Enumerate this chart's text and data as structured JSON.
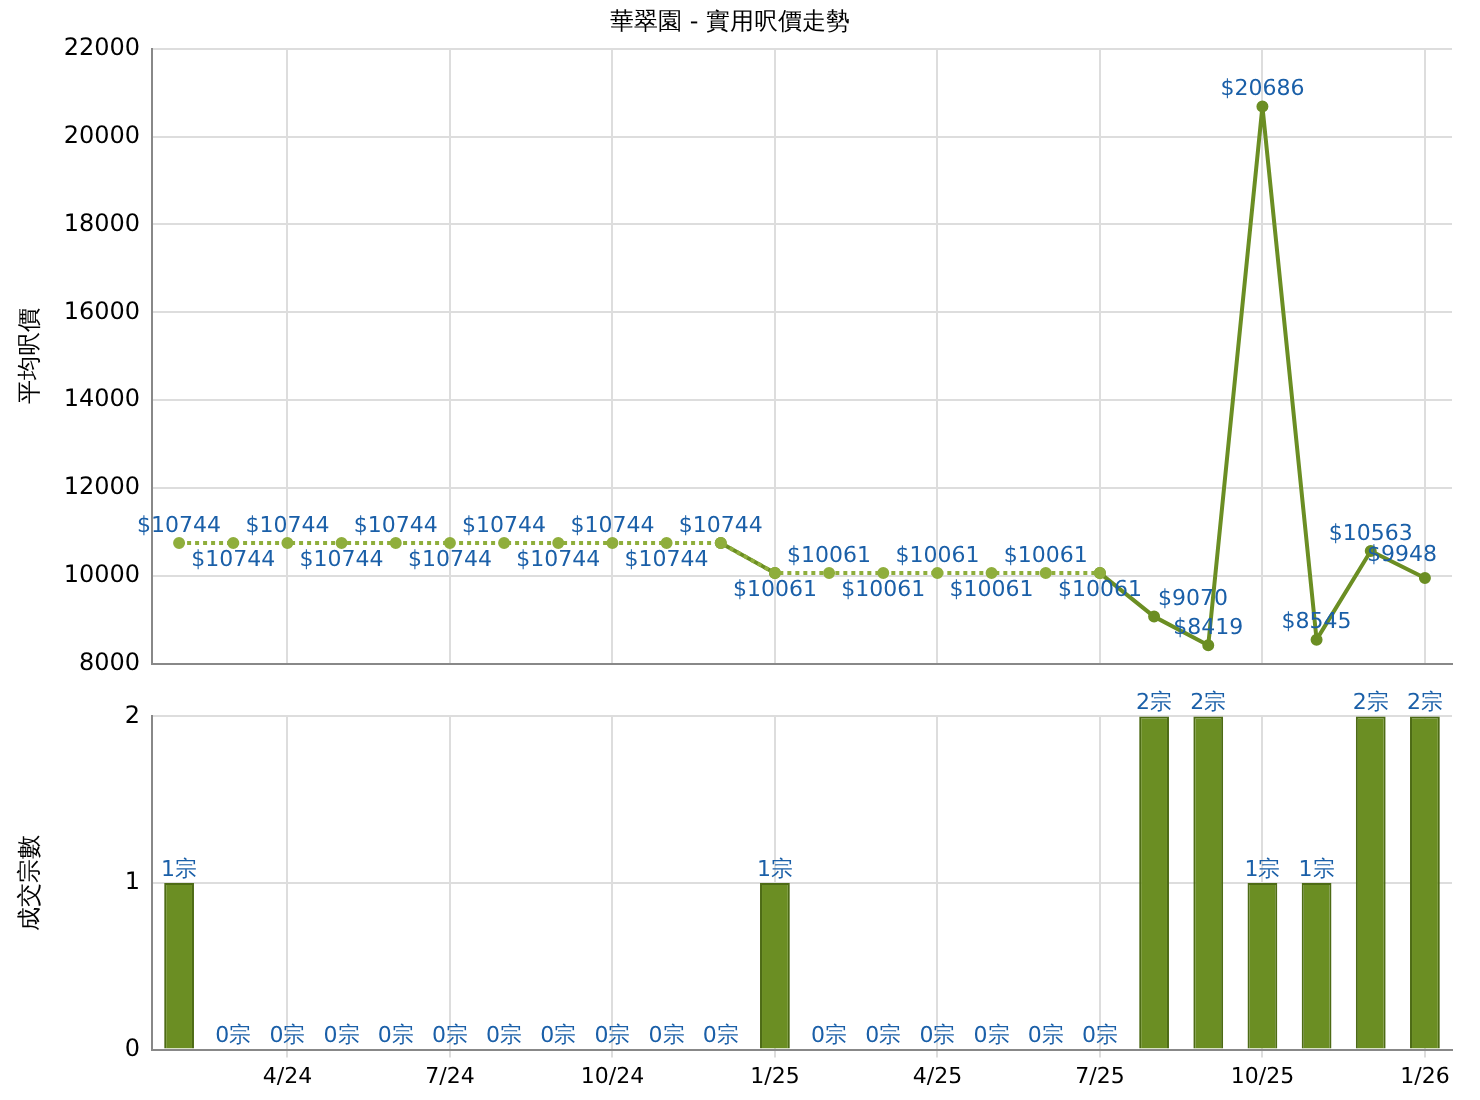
{
  "chart_data": [
    {
      "type": "line",
      "title": "華翠園 - 實用呎價走勢",
      "ylabel": "平均呎價",
      "categories": [
        null,
        null,
        null,
        null,
        null,
        null,
        null,
        null,
        null,
        null,
        null,
        null,
        null,
        null,
        null,
        null,
        null,
        null,
        null,
        null,
        null,
        null,
        null,
        null
      ],
      "ylim": [
        8000,
        22000
      ],
      "yticks": [
        8000,
        10000,
        12000,
        14000,
        16000,
        18000,
        20000,
        22000
      ],
      "grid": true,
      "legend": false,
      "tick_labels": "y",
      "marker": "circle",
      "series": [
        {
          "color": "#8fae3c",
          "line_style": "dotted",
          "values": [
            10744,
            10744,
            10744,
            10744,
            10744,
            10744,
            10744,
            10744,
            10744,
            10744,
            10744,
            10061,
            10061,
            10061,
            10061,
            10061,
            10061,
            10061,
            null,
            null,
            null,
            null,
            null,
            null
          ],
          "value_labels": [
            "$10744",
            "$10744",
            "$10744",
            "$10744",
            "$10744",
            "$10744",
            "$10744",
            "$10744",
            "$10744",
            "$10744",
            null,
            null,
            "$10061",
            "$10061",
            "$10061",
            "$10061",
            "$10061",
            null,
            null,
            null,
            null,
            null,
            null,
            null
          ]
        },
        {
          "color": "#6b8e23",
          "line_style": "solid",
          "values": [
            null,
            null,
            null,
            null,
            null,
            null,
            null,
            null,
            null,
            null,
            10744,
            10061,
            null,
            null,
            null,
            null,
            null,
            10061,
            9070,
            8419,
            20686,
            8545,
            10563,
            9948
          ],
          "value_labels": [
            null,
            null,
            null,
            null,
            null,
            null,
            null,
            null,
            null,
            null,
            "$10744",
            "$10061",
            null,
            null,
            null,
            null,
            null,
            "$10061",
            "$9070",
            "$8419",
            "$20686",
            "$8545",
            "$10563",
            "$9948"
          ]
        }
      ]
    },
    {
      "type": "bar",
      "ylabel": "成交宗數",
      "categories": [
        null,
        null,
        "4/24",
        null,
        null,
        "7/24",
        null,
        null,
        "10/24",
        null,
        null,
        "1/25",
        null,
        null,
        "4/25",
        null,
        null,
        "7/25",
        null,
        null,
        "10/25",
        null,
        null,
        "1/26"
      ],
      "ylim": [
        0,
        2
      ],
      "yticks": [
        0,
        1,
        2
      ],
      "grid": true,
      "legend": false,
      "series": [
        {
          "color": "#6b8e23",
          "values": [
            1,
            0,
            0,
            0,
            0,
            0,
            0,
            0,
            0,
            0,
            0,
            1,
            0,
            0,
            0,
            0,
            0,
            0,
            2,
            2,
            1,
            1,
            2,
            2
          ],
          "value_labels": [
            "1宗",
            "0宗",
            "0宗",
            "0宗",
            "0宗",
            "0宗",
            "0宗",
            "0宗",
            "0宗",
            "0宗",
            "0宗",
            "1宗",
            "0宗",
            "0宗",
            "0宗",
            "0宗",
            "0宗",
            "0宗",
            "2宗",
            "2宗",
            "1宗",
            "1宗",
            "2宗",
            "2宗"
          ]
        }
      ]
    }
  ]
}
